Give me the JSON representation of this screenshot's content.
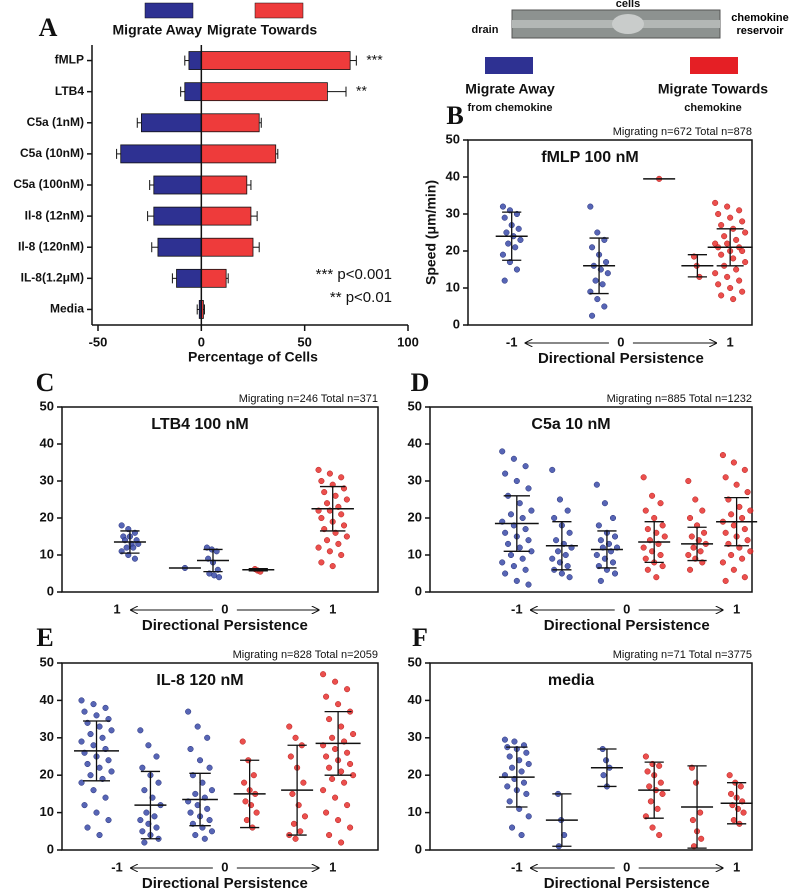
{
  "device": {
    "cells": "cells",
    "drain": "drain",
    "reservoir": "chemokine reservoir"
  },
  "legend_right": {
    "away": "Migrate Away",
    "away_sub": "from chemokine",
    "towards": "Migrate Towards",
    "towards_sub": "chemokine"
  },
  "chart_data": [
    {
      "type": "hbar",
      "panel_label": "A",
      "xlabel": "Percentage of Cells",
      "categories": [
        "fMLP",
        "LTB4",
        "C5a (1nM)",
        "C5a (10nM)",
        "C5a (100nM)",
        "Il-8 (12nM)",
        "Il-8 (120nM)",
        "IL-8(1.2μM)",
        "Media"
      ],
      "series": [
        {
          "name": "Migrate Away",
          "color": "#2e3192",
          "values": [
            -6,
            -8,
            -29,
            -39,
            -23,
            -23,
            -21,
            -12,
            -1
          ],
          "errors": [
            2,
            2,
            2,
            2,
            2,
            3,
            3,
            2,
            1
          ]
        },
        {
          "name": "Migrate Towards",
          "color": "#ee3b3b",
          "values": [
            72,
            61,
            28,
            36,
            22,
            24,
            25,
            12,
            1
          ],
          "errors": [
            3,
            9,
            1,
            1,
            2,
            3,
            3,
            1,
            0.5
          ]
        }
      ],
      "stars": [
        "***",
        "**",
        null,
        null,
        null,
        null,
        null,
        null,
        null
      ],
      "notes": [
        "*** p<0.001",
        "** p<0.01"
      ],
      "xlim": [
        -50,
        100
      ],
      "xticks": [
        -50,
        0,
        50,
        100
      ]
    },
    {
      "type": "dot",
      "panel_label": "B",
      "title": "fMLP 100 nM",
      "note": "Migrating n=672  Total n=878",
      "ylabel": "Speed (μm/min)",
      "xlabel": "Directional Persistence",
      "ylim": [
        0,
        50
      ],
      "yticks": [
        0,
        10,
        20,
        30,
        40,
        50
      ],
      "xlim": [
        -1.4,
        1.2
      ],
      "xticks": [
        -1,
        0,
        1
      ],
      "groups": [
        {
          "x": -1,
          "color": "#3a4aa8",
          "mean": 24,
          "sd": 6.5,
          "values": [
            32,
            31,
            30,
            29,
            27,
            26,
            25,
            24,
            23,
            22,
            21,
            19,
            17,
            15,
            12
          ]
        },
        {
          "x": -0.2,
          "color": "#3a4aa8",
          "mean": 16,
          "sd": 7.5,
          "values": [
            32,
            25,
            23,
            21,
            19,
            17,
            16,
            15,
            14,
            12,
            11,
            9,
            7,
            5,
            2.5
          ]
        },
        {
          "x": 0.35,
          "color": "#e8302e",
          "mean": 39.5,
          "sd": 0,
          "values": [
            39.5
          ]
        },
        {
          "x": 0.7,
          "color": "#e8302e",
          "mean": 16,
          "sd": 3,
          "values": [
            18.5,
            16,
            13
          ]
        },
        {
          "x": 1,
          "color": "#e8302e",
          "mean": 21,
          "sd": 5,
          "values": [
            33,
            32,
            31,
            30,
            29,
            28,
            27,
            26,
            25,
            24,
            23,
            22,
            22,
            21,
            21,
            20,
            20,
            19,
            18,
            17,
            16,
            15,
            14,
            13,
            12,
            11,
            10,
            9,
            8,
            7
          ]
        }
      ]
    },
    {
      "type": "dot",
      "panel_label": "C",
      "title": "LTB4 100 nM",
      "note": "Migrating n=246  Total n=371",
      "xlabel": "Directional Persistence",
      "ylim": [
        0,
        50
      ],
      "yticks": [
        0,
        10,
        20,
        30,
        40,
        50
      ],
      "xlim": [
        -1.51,
        1.42
      ],
      "xticks": [
        {
          "value": -1,
          "label": "1"
        },
        0,
        1
      ],
      "groups": [
        {
          "x": -0.88,
          "color": "#3a4aa8",
          "mean": 13.5,
          "sd": 3,
          "values": [
            18,
            17,
            16,
            15,
            15,
            14,
            14,
            13,
            13,
            12,
            12,
            11,
            10,
            9
          ]
        },
        {
          "x": -0.37,
          "color": "#3a4aa8",
          "mean": 6.5,
          "sd": 0,
          "values": [
            6.5
          ]
        },
        {
          "x": -0.11,
          "color": "#3a4aa8",
          "mean": 8.5,
          "sd": 3,
          "values": [
            12,
            11.5,
            11,
            9,
            8,
            6,
            5,
            4.5,
            4
          ]
        },
        {
          "x": 0.31,
          "color": "#e8302e",
          "mean": 6,
          "sd": 0.3,
          "values": [
            6.2,
            5.8,
            5.5
          ]
        },
        {
          "x": 1,
          "color": "#e8302e",
          "mean": 22.5,
          "sd": 6,
          "values": [
            33,
            32,
            31,
            30,
            29,
            28,
            27,
            26,
            25,
            24,
            23,
            22,
            22,
            21,
            20,
            19,
            18,
            17,
            16,
            15,
            14,
            13,
            12,
            11,
            10,
            8,
            7
          ]
        }
      ]
    },
    {
      "type": "dot",
      "panel_label": "D",
      "title": "C5a 10 nM",
      "note": "Migrating n=885  Total n=1232",
      "xlabel": "Directional Persistence",
      "ylim": [
        0,
        50
      ],
      "yticks": [
        0,
        10,
        20,
        30,
        40,
        50
      ],
      "xlim": [
        -1.79,
        1.14
      ],
      "xticks": [
        -1,
        0,
        1
      ],
      "groups": [
        {
          "x": -1,
          "color": "#3a4aa8",
          "mean": 18.5,
          "sd": 7.5,
          "values": [
            38,
            36,
            34,
            32,
            30,
            28,
            26,
            24,
            22,
            21,
            20,
            19,
            18,
            17,
            16,
            15,
            14,
            13,
            12,
            11,
            10,
            9,
            8,
            7,
            6,
            5,
            3,
            2
          ]
        },
        {
          "x": -0.59,
          "color": "#3a4aa8",
          "mean": 12.5,
          "sd": 6.5,
          "values": [
            33,
            25,
            22,
            20,
            18,
            16,
            14,
            13,
            12,
            11,
            10,
            9,
            8,
            7,
            6,
            5,
            4
          ]
        },
        {
          "x": -0.18,
          "color": "#3a4aa8",
          "mean": 11.5,
          "sd": 5,
          "values": [
            29,
            24,
            20,
            18,
            16,
            15,
            14,
            13,
            12,
            12,
            11,
            10,
            9,
            8,
            7,
            6,
            5,
            3
          ]
        },
        {
          "x": 0.25,
          "color": "#e8302e",
          "mean": 13.5,
          "sd": 5.5,
          "values": [
            31,
            26,
            24,
            22,
            20,
            18,
            17,
            16,
            15,
            14,
            13,
            12,
            11,
            10,
            9,
            8,
            7,
            6,
            4
          ]
        },
        {
          "x": 0.64,
          "color": "#e8302e",
          "mean": 13,
          "sd": 4.5,
          "values": [
            30,
            25,
            22,
            20,
            18,
            16,
            15,
            14,
            13,
            12,
            11,
            10,
            9,
            8,
            6
          ]
        },
        {
          "x": 1,
          "color": "#e8302e",
          "mean": 19,
          "sd": 6.5,
          "values": [
            37,
            35,
            33,
            31,
            29,
            27,
            25,
            23,
            22,
            21,
            20,
            19,
            18,
            17,
            16,
            15,
            14,
            13,
            12,
            11,
            10,
            9,
            8,
            6,
            4,
            3
          ]
        }
      ]
    },
    {
      "type": "dot",
      "panel_label": "E",
      "title": "IL-8 120 nM",
      "note": "Migrating n=828  Total n=2059",
      "xlabel": "Directional Persistence",
      "ylim": [
        0,
        50
      ],
      "yticks": [
        0,
        10,
        20,
        30,
        40,
        50
      ],
      "xlim": [
        -1.51,
        1.42
      ],
      "xticks": [
        -1,
        0,
        1
      ],
      "groups": [
        {
          "x": -1.19,
          "color": "#3a4aa8",
          "mean": 26.5,
          "sd": 8,
          "values": [
            40,
            39,
            38,
            37,
            36,
            35,
            34,
            33,
            32,
            31,
            30,
            29,
            28,
            27,
            26,
            25,
            24,
            23,
            22,
            21,
            20,
            19,
            18,
            16,
            14,
            12,
            10,
            8,
            6,
            4
          ]
        },
        {
          "x": -0.69,
          "color": "#3a4aa8",
          "mean": 12,
          "sd": 9,
          "values": [
            32,
            28,
            25,
            22,
            20,
            18,
            16,
            14,
            12,
            10,
            9,
            8,
            7,
            6,
            5,
            4,
            3,
            2
          ]
        },
        {
          "x": -0.23,
          "color": "#3a4aa8",
          "mean": 13.5,
          "sd": 7,
          "values": [
            37,
            33,
            30,
            27,
            24,
            22,
            20,
            18,
            16,
            15,
            14,
            13,
            12,
            11,
            10,
            9,
            8,
            7,
            6,
            5,
            4,
            3
          ]
        },
        {
          "x": 0.23,
          "color": "#e8302e",
          "mean": 15,
          "sd": 9,
          "values": [
            29,
            24,
            20,
            18,
            16,
            15,
            13,
            12,
            10,
            8,
            6
          ]
        },
        {
          "x": 0.67,
          "color": "#e8302e",
          "mean": 16,
          "sd": 12,
          "values": [
            33,
            30,
            28,
            25,
            22,
            18,
            15,
            12,
            9,
            7,
            5,
            4,
            3
          ]
        },
        {
          "x": 1.05,
          "color": "#e8302e",
          "mean": 28.5,
          "sd": 8.5,
          "values": [
            47,
            45,
            43,
            41,
            39,
            37,
            35,
            33,
            31,
            30,
            29,
            28,
            27,
            26,
            25,
            24,
            23,
            22,
            21,
            20,
            19,
            18,
            16,
            14,
            12,
            10,
            8,
            6,
            4,
            2
          ]
        }
      ]
    },
    {
      "type": "dot",
      "panel_label": "F",
      "title": "media",
      "note": "Migrating n=71  Total n=3775",
      "xlabel": "Directional Persistence",
      "ylim": [
        0,
        50
      ],
      "yticks": [
        0,
        10,
        20,
        30,
        40,
        50
      ],
      "xlim": [
        -1.79,
        1.14
      ],
      "xticks": [
        -1,
        0,
        1
      ],
      "groups": [
        {
          "x": -1,
          "color": "#3a4aa8",
          "mean": 19.5,
          "sd": 8,
          "values": [
            29.5,
            29,
            28,
            27.5,
            27,
            26,
            25,
            24,
            23,
            22,
            21,
            20,
            19,
            18,
            17,
            16,
            15,
            13,
            11,
            9,
            6,
            4
          ]
        },
        {
          "x": -0.59,
          "color": "#3a4aa8",
          "mean": 8,
          "sd": 7,
          "values": [
            15,
            8,
            4,
            1
          ]
        },
        {
          "x": -0.18,
          "color": "#3a4aa8",
          "mean": 22,
          "sd": 5,
          "values": [
            27,
            24,
            22,
            20,
            17
          ]
        },
        {
          "x": 0.25,
          "color": "#e8302e",
          "mean": 16,
          "sd": 7.5,
          "values": [
            25,
            23,
            22.5,
            21,
            20,
            18,
            17,
            16,
            15,
            13,
            11,
            9,
            6,
            4
          ]
        },
        {
          "x": 0.64,
          "color": "#e8302e",
          "mean": 11.5,
          "sd": 11,
          "values": [
            22,
            18,
            10,
            8,
            5,
            3,
            1
          ]
        },
        {
          "x": 1,
          "color": "#e8302e",
          "mean": 12.5,
          "sd": 5.5,
          "values": [
            20,
            18,
            17,
            15,
            14,
            13,
            12,
            11,
            10,
            8,
            7
          ]
        }
      ]
    }
  ]
}
